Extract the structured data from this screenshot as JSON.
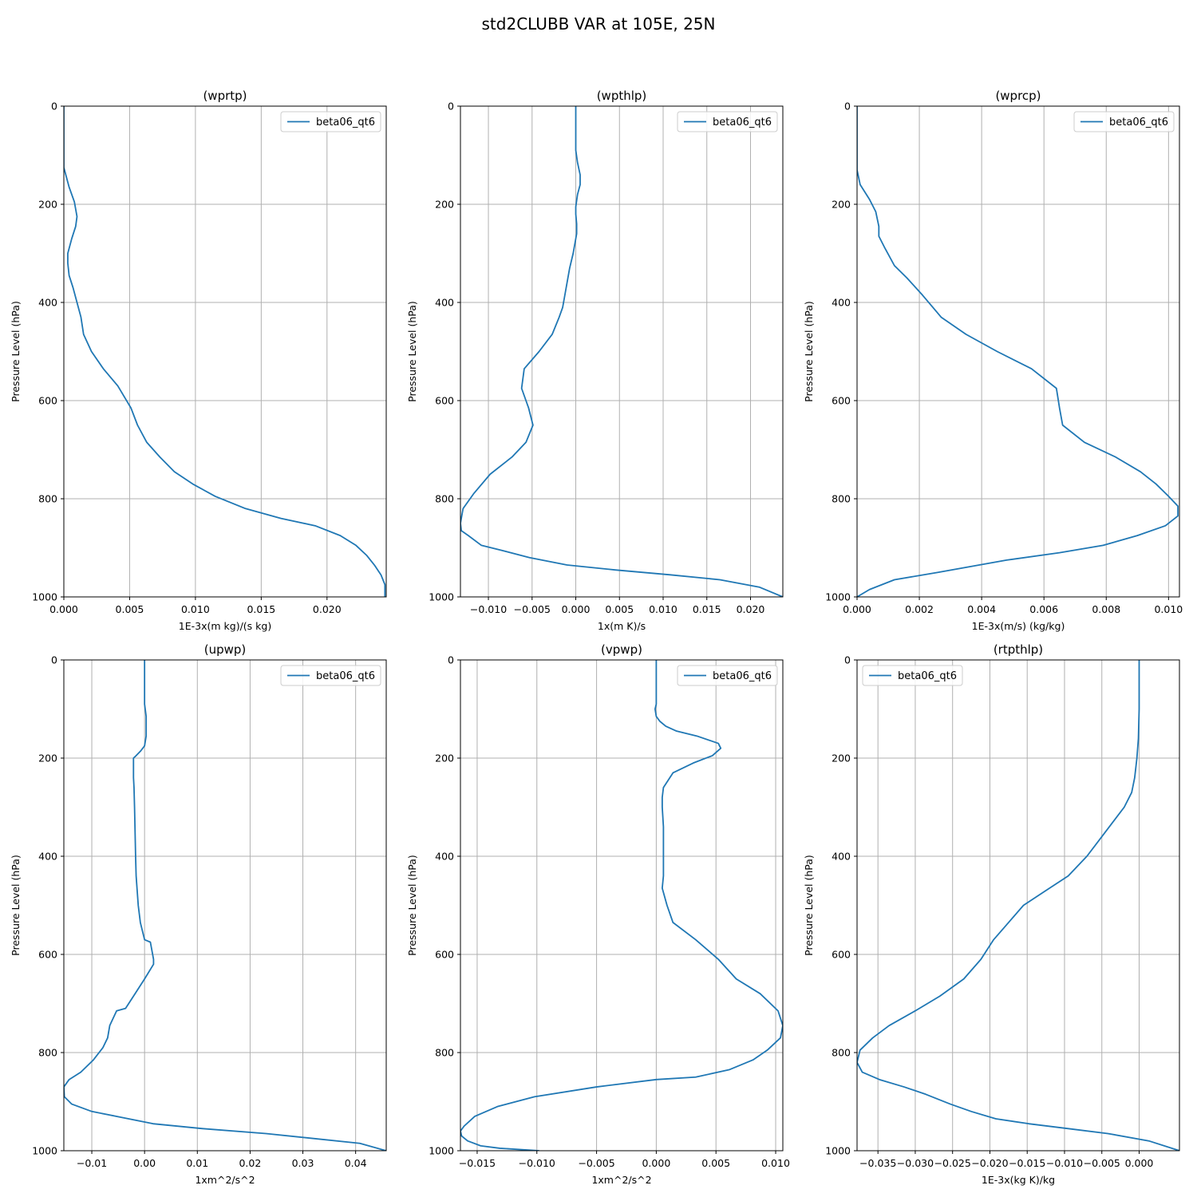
{
  "figure": {
    "suptitle": "std2CLUBB VAR at 105E, 25N"
  },
  "chart_data": [
    {
      "type": "line",
      "title": "(wprtp)",
      "xlabel": "1E-3x(m kg)/(s kg)",
      "ylabel": "Pressure Level (hPa)",
      "xlim": [
        0,
        0.0245
      ],
      "ylim": [
        1000,
        0
      ],
      "xticks": [
        0,
        0.005,
        0.01,
        0.015,
        0.02
      ],
      "xtick_labels": [
        "0.000",
        "0.005",
        "0.010",
        "0.015",
        "0.020"
      ],
      "yticks": [
        0,
        200,
        400,
        600,
        800,
        1000
      ],
      "grid": true,
      "legend_loc": "upper right",
      "series": [
        {
          "name": "beta06_qt6",
          "color": "#1f77b4",
          "x": [
            0,
            0,
            0,
            0.0004,
            0.0008,
            0.001,
            0.0009,
            0.0006,
            0.0003,
            0.0003,
            0.0004,
            0.0007,
            0.001,
            0.0013,
            0.0015,
            0.0021,
            0.003,
            0.0041,
            0.0051,
            0.0056,
            0.0063,
            0.0073,
            0.0084,
            0.0098,
            0.0115,
            0.0138,
            0.0165,
            0.0191,
            0.021,
            0.0222,
            0.023,
            0.0236,
            0.0241,
            0.0244,
            0.0244
          ],
          "y": [
            0,
            100,
            125,
            165,
            195,
            225,
            245,
            270,
            300,
            320,
            345,
            370,
            400,
            430,
            465,
            500,
            535,
            570,
            615,
            650,
            685,
            715,
            745,
            770,
            795,
            820,
            840,
            855,
            875,
            895,
            915,
            935,
            955,
            975,
            1000
          ]
        }
      ]
    },
    {
      "type": "line",
      "title": "(wpthlp)",
      "xlabel": "1x(m K)/s",
      "ylabel": "Pressure Level (hPa)",
      "xlim": [
        -0.0132,
        0.0237
      ],
      "ylim": [
        1000,
        0
      ],
      "xticks": [
        -0.01,
        -0.005,
        0,
        0.005,
        0.01,
        0.015,
        0.02
      ],
      "xtick_labels": [
        "−0.010",
        "−0.005",
        "0.000",
        "0.005",
        "0.010",
        "0.015",
        "0.020"
      ],
      "yticks": [
        0,
        200,
        400,
        600,
        800,
        1000
      ],
      "grid": true,
      "legend_loc": "upper right",
      "series": [
        {
          "name": "beta06_qt6",
          "color": "#1f77b4",
          "x": [
            0,
            0,
            0,
            0.0002,
            0.0005,
            0.0005,
            0.0002,
            0,
            0,
            0.0001,
            0.0001,
            -0.0003,
            -0.0007,
            -0.001,
            -0.0013,
            -0.0015,
            -0.0019,
            -0.0027,
            -0.0042,
            -0.0059,
            -0.0062,
            -0.0054,
            -0.0049,
            -0.0057,
            -0.0073,
            -0.0098,
            -0.0117,
            -0.0129,
            -0.0132,
            -0.0131,
            -0.0123,
            -0.0108,
            -0.0085,
            -0.0053,
            -0.001,
            0.0045,
            0.0108,
            0.0165,
            0.021,
            0.0237
          ],
          "y": [
            0,
            30,
            90,
            115,
            140,
            160,
            180,
            205,
            220,
            240,
            260,
            300,
            330,
            360,
            390,
            410,
            430,
            465,
            500,
            535,
            575,
            615,
            650,
            685,
            715,
            750,
            790,
            820,
            850,
            865,
            875,
            895,
            905,
            920,
            935,
            945,
            955,
            965,
            980,
            1000
          ]
        }
      ]
    },
    {
      "type": "line",
      "title": "(wprcp)",
      "xlabel": "1E-3x(m/s) (kg/kg)",
      "ylabel": "Pressure Level (hPa)",
      "xlim": [
        0,
        0.01035
      ],
      "ylim": [
        1000,
        0
      ],
      "xticks": [
        0,
        0.002,
        0.004,
        0.006,
        0.008,
        0.01
      ],
      "xtick_labels": [
        "0.000",
        "0.002",
        "0.004",
        "0.006",
        "0.008",
        "0.010"
      ],
      "yticks": [
        0,
        200,
        400,
        600,
        800,
        1000
      ],
      "grid": true,
      "legend_loc": "upper right",
      "series": [
        {
          "name": "beta06_qt6",
          "color": "#1f77b4",
          "x": [
            0,
            0,
            0,
            0.0001,
            0.0004,
            0.0006,
            0.0007,
            0.0007,
            0.0009,
            0.0012,
            0.0016,
            0.0021,
            0.0027,
            0.0035,
            0.0045,
            0.0056,
            0.0064,
            0.0065,
            0.0066,
            0.0073,
            0.0083,
            0.0091,
            0.0096,
            0.01,
            0.0103,
            0.0103,
            0.0099,
            0.009,
            0.0079,
            0.0065,
            0.0048,
            0.0026,
            0.0012,
            0.0004,
            0
          ],
          "y": [
            0,
            100,
            130,
            160,
            190,
            215,
            245,
            265,
            290,
            325,
            350,
            385,
            430,
            465,
            500,
            535,
            575,
            615,
            650,
            685,
            715,
            745,
            770,
            795,
            815,
            835,
            855,
            875,
            895,
            910,
            925,
            950,
            965,
            985,
            1000
          ]
        }
      ]
    },
    {
      "type": "line",
      "title": "(upwp)",
      "xlabel": "1xm^2/s^2",
      "ylabel": "Pressure Level (hPa)",
      "xlim": [
        -0.0153,
        0.0458
      ],
      "ylim": [
        1000,
        0
      ],
      "xticks": [
        -0.01,
        0,
        0.01,
        0.02,
        0.03,
        0.04
      ],
      "xtick_labels": [
        "−0.01",
        "0.00",
        "0.01",
        "0.02",
        "0.03",
        "0.04"
      ],
      "yticks": [
        0,
        200,
        400,
        600,
        800,
        1000
      ],
      "grid": true,
      "legend_loc": "upper right",
      "series": [
        {
          "name": "beta06_qt6",
          "color": "#1f77b4",
          "x": [
            0,
            0,
            0.0003,
            0.0003,
            0,
            -0.0007,
            -0.0016,
            -0.0021,
            -0.0021,
            -0.002,
            -0.0019,
            -0.0018,
            -0.0017,
            -0.0016,
            -0.0014,
            -0.0012,
            -0.0008,
            0,
            0.0011,
            0.0017,
            0.0017,
            0,
            -0.0018,
            -0.0036,
            -0.0053,
            -0.0066,
            -0.007,
            -0.0079,
            -0.0097,
            -0.0121,
            -0.0143,
            -0.0153,
            -0.0152,
            -0.0138,
            -0.01,
            -0.0053,
            0.0016,
            0.011,
            0.023,
            0.0408,
            0.0458
          ],
          "y": [
            0,
            90,
            115,
            155,
            175,
            185,
            195,
            200,
            240,
            260,
            300,
            350,
            400,
            440,
            470,
            500,
            535,
            570,
            575,
            610,
            620,
            650,
            680,
            710,
            715,
            745,
            770,
            790,
            815,
            840,
            855,
            870,
            890,
            905,
            920,
            930,
            945,
            955,
            965,
            985,
            1000
          ]
        }
      ]
    },
    {
      "type": "line",
      "title": "(vpwp)",
      "xlabel": "1xm^2/s^2",
      "ylabel": "Pressure Level (hPa)",
      "xlim": [
        -0.0164,
        0.0106
      ],
      "ylim": [
        1000,
        0
      ],
      "xticks": [
        -0.015,
        -0.01,
        -0.005,
        0,
        0.005,
        0.01
      ],
      "xtick_labels": [
        "−0.015",
        "−0.010",
        "−0.005",
        "0.000",
        "0.005",
        "0.010"
      ],
      "yticks": [
        0,
        200,
        400,
        600,
        800,
        1000
      ],
      "grid": true,
      "legend_loc": "upper right",
      "series": [
        {
          "name": "beta06_qt6",
          "color": "#1f77b4",
          "x": [
            0,
            0,
            -0.0001,
            0,
            0.0003,
            0.0008,
            0.0017,
            0.0034,
            0.0052,
            0.0054,
            0.0047,
            0.0031,
            0.0014,
            0.0006,
            0.0005,
            0.0005,
            0.0006,
            0.0006,
            0.0006,
            0.0005,
            0.0009,
            0.0014,
            0.0033,
            0.0052,
            0.0067,
            0.0087,
            0.0102,
            0.0106,
            0.0104,
            0.0093,
            0.0081,
            0.0061,
            0.0033,
            0,
            -0.005,
            -0.0102,
            -0.0133,
            -0.0152,
            -0.0161,
            -0.0164,
            -0.0163,
            -0.0158,
            -0.0147,
            -0.0131,
            -0.0098
          ],
          "y": [
            0,
            90,
            100,
            115,
            125,
            135,
            145,
            155,
            170,
            180,
            195,
            210,
            230,
            260,
            280,
            300,
            340,
            400,
            440,
            465,
            500,
            535,
            570,
            610,
            650,
            680,
            715,
            745,
            770,
            795,
            815,
            835,
            850,
            855,
            870,
            890,
            910,
            930,
            950,
            960,
            970,
            980,
            990,
            995,
            1000
          ]
        }
      ]
    },
    {
      "type": "line",
      "title": "(rtpthlp)",
      "xlabel": "1E-3x(kg K)/kg",
      "ylabel": "Pressure Level (hPa)",
      "xlim": [
        -0.0378,
        0.0054
      ],
      "ylim": [
        1000,
        0
      ],
      "xticks": [
        -0.035,
        -0.03,
        -0.025,
        -0.02,
        -0.015,
        -0.01,
        -0.005,
        0
      ],
      "xtick_labels": [
        "−0.035",
        "−0.030",
        "−0.025",
        "−0.020",
        "−0.015",
        "−0.010",
        "−0.005",
        "0.000"
      ],
      "yticks": [
        0,
        200,
        400,
        600,
        800,
        1000
      ],
      "grid": true,
      "legend_loc": "upper left",
      "series": [
        {
          "name": "beta06_qt6",
          "color": "#1f77b4",
          "x": [
            0,
            0,
            -0.0001,
            -0.0003,
            -0.0006,
            -0.001,
            -0.002,
            -0.0035,
            -0.005,
            -0.007,
            -0.0095,
            -0.0125,
            -0.0155,
            -0.0175,
            -0.0195,
            -0.0212,
            -0.0235,
            -0.0267,
            -0.03,
            -0.0335,
            -0.0357,
            -0.0374,
            -0.0378,
            -0.0371,
            -0.0348,
            -0.0315,
            -0.0286,
            -0.0253,
            -0.0225,
            -0.0192,
            -0.0148,
            -0.0095,
            -0.0042,
            0.0013,
            0.0054
          ],
          "y": [
            0,
            100,
            160,
            200,
            240,
            270,
            300,
            330,
            360,
            400,
            440,
            470,
            500,
            535,
            570,
            610,
            650,
            685,
            715,
            745,
            770,
            795,
            820,
            840,
            855,
            870,
            885,
            905,
            920,
            935,
            945,
            955,
            965,
            980,
            1000
          ]
        }
      ]
    }
  ]
}
